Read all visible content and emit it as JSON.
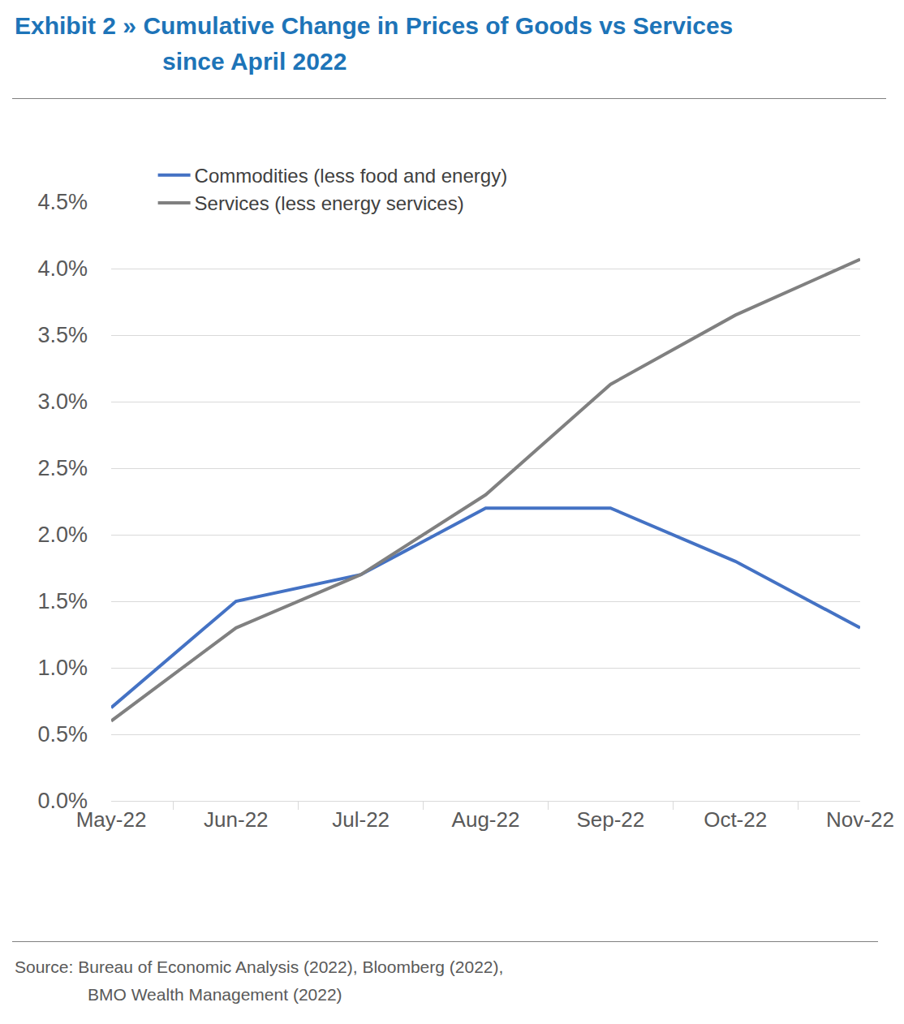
{
  "chart_data": {
    "type": "line",
    "title": "Exhibit 2 » Cumulative Change in Prices of Goods vs Services since April 2022",
    "source": "Source: Bureau of Economic Analysis (2022), Bloomberg (2022), BMO Wealth Management (2022)",
    "categories": [
      "May-22",
      "Jun-22",
      "Jul-22",
      "Aug-22",
      "Sep-22",
      "Oct-22",
      "Nov-22"
    ],
    "series": [
      {
        "name": "Commodities (less food and energy)",
        "color": "#4472c4",
        "values": [
          0.7,
          1.5,
          1.7,
          2.2,
          2.2,
          1.8,
          1.3
        ]
      },
      {
        "name": "Services (less energy services)",
        "color": "#808080",
        "values": [
          0.6,
          1.3,
          1.7,
          2.3,
          3.13,
          3.65,
          4.07
        ]
      }
    ],
    "ylim": [
      0,
      4.5
    ],
    "yticks": [
      {
        "value": 0,
        "label": "0.0%"
      },
      {
        "value": 0.5,
        "label": "0.5%"
      },
      {
        "value": 1,
        "label": "1.0%"
      },
      {
        "value": 1.5,
        "label": "1.5%"
      },
      {
        "value": 2,
        "label": "2.0%"
      },
      {
        "value": 2.5,
        "label": "2.5%"
      },
      {
        "value": 3,
        "label": "3.0%"
      },
      {
        "value": 3.5,
        "label": "3.5%"
      },
      {
        "value": 4,
        "label": "4.0%"
      },
      {
        "value": 4.5,
        "label": "4.5%"
      }
    ],
    "grid": true,
    "legend": "top-left"
  }
}
